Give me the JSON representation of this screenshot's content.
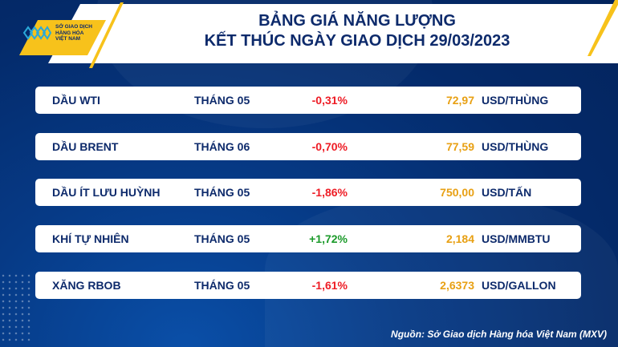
{
  "header": {
    "title_line1": "BẢNG GIÁ NĂNG LƯỢNG",
    "title_line2": "KẾT THÚC NGÀY GIAO DỊCH 29/03/2023"
  },
  "logo": {
    "text": "SỞ GIAO DỊCH HÀNG HÓA VIỆT NAM"
  },
  "rows": [
    {
      "name": "DẦU WTI",
      "month": "THÁNG 05",
      "change": "-0,31%",
      "direction": "down",
      "price": "72,97",
      "unit": "USD/THÙNG"
    },
    {
      "name": "DẦU BRENT",
      "month": "THÁNG 06",
      "change": "-0,70%",
      "direction": "down",
      "price": "77,59",
      "unit": "USD/THÙNG"
    },
    {
      "name": "DẦU ÍT LƯU HUỲNH",
      "month": "THÁNG 05",
      "change": "-1,86%",
      "direction": "down",
      "price": "750,00",
      "unit": "USD/TẤN"
    },
    {
      "name": "KHÍ TỰ NHIÊN",
      "month": "THÁNG 05",
      "change": "+1,72%",
      "direction": "up",
      "price": "2,184",
      "unit": "USD/MMBTU"
    },
    {
      "name": "XĂNG RBOB",
      "month": "THÁNG 05",
      "change": "-1,61%",
      "direction": "down",
      "price": "2,6373",
      "unit": "USD/GALLON"
    }
  ],
  "footer": {
    "source": "Nguồn: Sở Giao dịch Hàng hóa Việt Nam (MXV)"
  },
  "colors": {
    "navy": "#0d2a6b",
    "negative": "#ee1c25",
    "positive": "#1b9a2a",
    "price": "#e8a013",
    "accent": "#f7c21b"
  }
}
